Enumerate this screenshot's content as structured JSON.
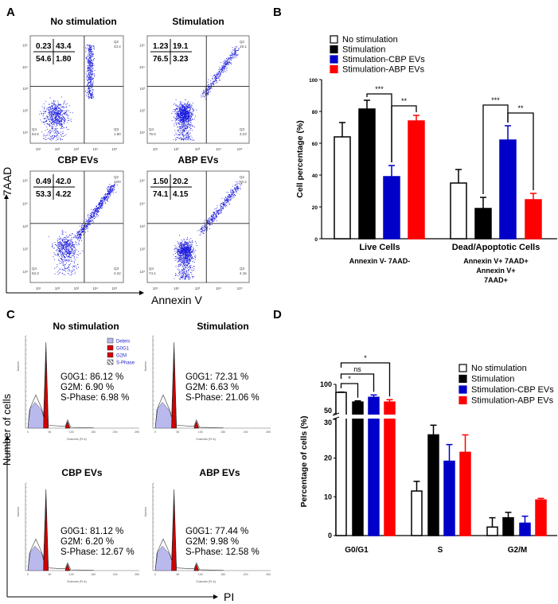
{
  "panelA": {
    "label": "A",
    "y_axis": "7AAD",
    "x_axis": "Annexin V",
    "ticks": [
      "10¹",
      "10²",
      "10³",
      "10⁴",
      "10⁵"
    ],
    "plots": [
      {
        "title": "No stimulation",
        "q1": "0.23",
        "q2": "43.4",
        "q4": "54.6",
        "q3": "1.80",
        "q2_label": "Q2",
        "q3_label": "Q3",
        "q4_label": "Q4"
      },
      {
        "title": "Stimulation",
        "q1": "1.23",
        "q2": "19.1",
        "q4": "76.5",
        "q3": "3.23",
        "q2_label": "Q2",
        "q3_label": "Q3",
        "q4_label": "Q4"
      },
      {
        "title": "CBP EVs",
        "q1": "0.49",
        "q2": "42.0",
        "q4": "53.3",
        "q3": "4.22",
        "q2_label": "Q2",
        "q3_label": "Q3",
        "q4_label": "Q4"
      },
      {
        "title": "ABP EVs",
        "q1": "1.50",
        "q2": "20.2",
        "q4": "74.1",
        "q3": "4.15",
        "q2_label": "Q2",
        "q3_label": "Q3",
        "q4_label": "Q4"
      }
    ],
    "dot_color": "#1a1adc"
  },
  "panelC": {
    "label": "C",
    "y_axis": "Number of cells",
    "x_axis": "PI",
    "hist_xlabel": "Channels (PI-A)",
    "hist_ylabel": "Number",
    "x_ticks": [
      "0",
      "50",
      "100",
      "150",
      "200",
      "250"
    ],
    "legend": [
      {
        "label": "Debris",
        "color": "#b9b9ee"
      },
      {
        "label": "G0G1",
        "color": "#d40000"
      },
      {
        "label": "G2M",
        "color": "#d40000"
      },
      {
        "label": "S-Phase",
        "color": "hatched"
      }
    ],
    "plots": [
      {
        "title": "No stimulation",
        "g0g1": "G0G1: 86.12 %",
        "g2m": "G2M:  6.90 %",
        "s": "S-Phase: 6.98 %"
      },
      {
        "title": "Stimulation",
        "g0g1": "G0G1: 72.31 %",
        "g2m": "G2M: 6.63 %",
        "s": "S-Phase: 21.06 %"
      },
      {
        "title": "CBP EVs",
        "g0g1": "G0G1: 81.12 %",
        "g2m": "G2M: 6.20 %",
        "s": "S-Phase: 12.67 %"
      },
      {
        "title": "ABP EVs",
        "g0g1": "G0G1: 77.44 %",
        "g2m": "G2M: 9.98 %",
        "s": "S-Phase: 12.58 %"
      }
    ]
  },
  "chart_data": [
    {
      "panel": "B",
      "type": "bar",
      "ylabel": "Cell percentage (%)",
      "ylim": [
        0,
        100
      ],
      "yticks": [
        "0",
        "20",
        "40",
        "60",
        "80",
        "100"
      ],
      "categories": [
        "Live Cells",
        "Dead/Apoptotic Cells"
      ],
      "category_sublabels": [
        [
          "Annexin V- 7AAD-"
        ],
        [
          "Annexin V+ 7AAD+",
          "Annexin V+",
          "7AAD+"
        ]
      ],
      "series": [
        {
          "name": "No stimulation",
          "color": "#ffffff",
          "values": [
            64,
            35
          ],
          "errors": [
            9,
            8.5
          ]
        },
        {
          "name": "Stimulation",
          "color": "#000000",
          "values": [
            81.5,
            19
          ],
          "errors": [
            5.5,
            7
          ]
        },
        {
          "name": "Stimulation-CBP EVs",
          "color": "#0000c8",
          "values": [
            39,
            62
          ],
          "errors": [
            7,
            9
          ]
        },
        {
          "name": "Stimulation-ABP EVs",
          "color": "#ff0000",
          "values": [
            74,
            24.5
          ],
          "errors": [
            3.5,
            4
          ]
        }
      ],
      "significance": [
        {
          "category": 0,
          "from": 1,
          "to": 2,
          "label": "***"
        },
        {
          "category": 0,
          "from": 2,
          "to": 3,
          "label": "**"
        },
        {
          "category": 1,
          "from": 1,
          "to": 2,
          "label": "***"
        },
        {
          "category": 1,
          "from": 2,
          "to": 3,
          "label": "**"
        }
      ],
      "legend_position": "top-left"
    },
    {
      "panel": "D",
      "type": "bar",
      "ylabel": "Percentage of cells (%)",
      "axis_break": [
        30,
        50
      ],
      "ylim": [
        0,
        100
      ],
      "yticks": [
        "0",
        "10",
        "20",
        "30",
        "50",
        "100"
      ],
      "categories": [
        "G0/G1",
        "S",
        "G2/M"
      ],
      "series": [
        {
          "name": "No stimulation",
          "color": "#ffffff",
          "values": [
            86.4,
            11.5,
            2.2
          ],
          "errors": [
            0.5,
            2.5,
            2.4
          ]
        },
        {
          "name": "Stimulation",
          "color": "#000000",
          "values": [
            70,
            26,
            4.6
          ],
          "errors": [
            2,
            2.5,
            1.4
          ]
        },
        {
          "name": "Stimulation-CBP EVs",
          "color": "#0000c8",
          "values": [
            78,
            19.2,
            3.2
          ],
          "errors": [
            4,
            4.3,
            1.8
          ]
        },
        {
          "name": "Stimulation-ABP EVs",
          "color": "#ff0000",
          "values": [
            70,
            21.5,
            9.2
          ],
          "errors": [
            4,
            4.5,
            0.4
          ]
        }
      ],
      "significance": [
        {
          "category": 0,
          "from": 0,
          "to": 1,
          "label": "*"
        },
        {
          "category": 0,
          "from": 0,
          "to": 2,
          "label": "ns"
        },
        {
          "category": 0,
          "from": 0,
          "to": 3,
          "label": "*"
        }
      ],
      "legend_position": "top-right"
    }
  ],
  "labels": {
    "B": "B",
    "D": "D"
  }
}
